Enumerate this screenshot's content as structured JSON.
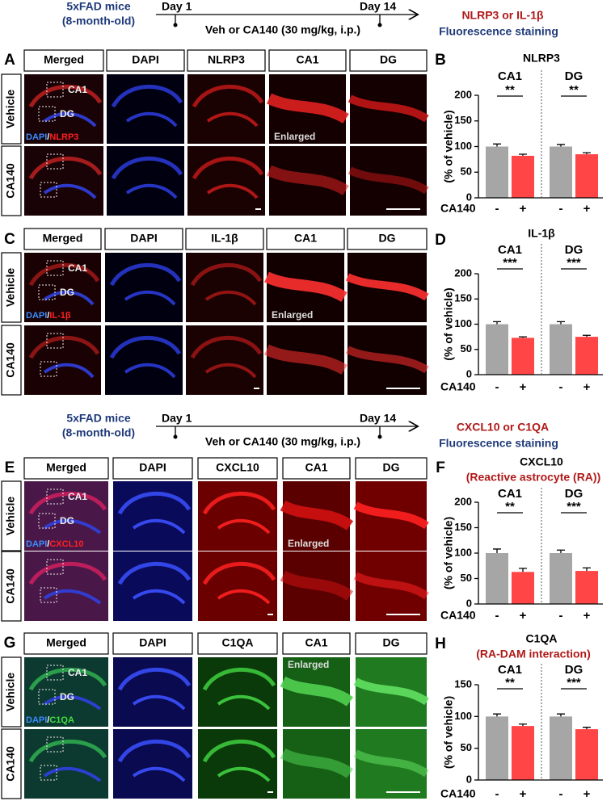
{
  "timelines": [
    {
      "mice": "5xFAD mice",
      "age": "(8-month-old)",
      "start": "Day 1",
      "end": "Day 14",
      "treatment": "Veh or CA140 (30 mg/kg, i.p.)",
      "readout": "NLRP3 or IL-1β",
      "method": "Fluorescence staining"
    },
    {
      "mice": "5xFAD mice",
      "age": "(8-month-old)",
      "start": "Day 1",
      "end": "Day 14",
      "treatment": "Veh or CA140 (30 mg/kg, i.p.)",
      "readout": "CXCL10 or C1QA",
      "method": "Fluorescence staining"
    }
  ],
  "panels": [
    {
      "letter": "A",
      "columns": [
        "Merged",
        "DAPI",
        "NLRP3",
        "CA1",
        "DG"
      ],
      "rows": [
        "Vehicle",
        "CA140"
      ],
      "regions": [
        "CA1",
        "DG"
      ],
      "stain_dapi": "DAPI",
      "separator": "/",
      "stain": "NLRP3",
      "note": "Enlarged"
    },
    {
      "letter": "C",
      "columns": [
        "Merged",
        "DAPI",
        "IL-1β",
        "CA1",
        "DG"
      ],
      "rows": [
        "Vehicle",
        "CA140"
      ],
      "regions": [
        "CA1",
        "DG"
      ],
      "stain_dapi": "DAPI",
      "separator": "/",
      "stain": "IL-1β",
      "note": "Enlarged"
    },
    {
      "letter": "E",
      "columns": [
        "Merged",
        "DAPI",
        "CXCL10",
        "CA1",
        "DG"
      ],
      "rows": [
        "Vehicle",
        "CA140"
      ],
      "regions": [
        "CA1",
        "DG"
      ],
      "stain_dapi": "DAPI",
      "separator": "/",
      "stain": "CXCL10",
      "note": "Enlarged"
    },
    {
      "letter": "G",
      "columns": [
        "Merged",
        "DAPI",
        "C1QA",
        "CA1",
        "DG"
      ],
      "rows": [
        "Vehicle",
        "CA140"
      ],
      "regions": [
        "CA1",
        "DG"
      ],
      "stain_dapi": "DAPI",
      "separator": "/",
      "stain": "C1QA",
      "note": "Enlarged"
    }
  ],
  "chart_data": [
    {
      "type": "bar",
      "letter": "B",
      "title": "NLRP3",
      "groups": [
        "CA1",
        "DG"
      ],
      "significance": [
        "**",
        "**"
      ],
      "ylabel": "(% of vehicle)",
      "x_label": "CA140",
      "categories": [
        "-",
        "+",
        "-",
        "+"
      ],
      "values": [
        100,
        82,
        100,
        85
      ],
      "errors": [
        5,
        3,
        4,
        3
      ],
      "colors": [
        "#a6a6a6",
        "#ff4545",
        "#a6a6a6",
        "#ff4545"
      ],
      "ylim": [
        0,
        200
      ],
      "yticks": [
        0,
        50,
        100,
        150,
        200
      ]
    },
    {
      "type": "bar",
      "letter": "D",
      "title": "IL-1β",
      "groups": [
        "CA1",
        "DG"
      ],
      "significance": [
        "***",
        "***"
      ],
      "ylabel": "(% of vehicle)",
      "x_label": "CA140",
      "categories": [
        "-",
        "+",
        "-",
        "+"
      ],
      "values": [
        100,
        73,
        100,
        75
      ],
      "errors": [
        5,
        2,
        5,
        3
      ],
      "colors": [
        "#a6a6a6",
        "#ff4545",
        "#a6a6a6",
        "#ff4545"
      ],
      "ylim": [
        0,
        200
      ],
      "yticks": [
        0,
        50,
        100,
        150,
        200
      ]
    },
    {
      "type": "bar",
      "letter": "F",
      "title": "CXCL10",
      "subtitle": "(Reactive astrocyte (RA))",
      "groups": [
        "CA1",
        "DG"
      ],
      "significance": [
        "**",
        "***"
      ],
      "ylabel": "(% of vehicle)",
      "x_label": "CA140",
      "categories": [
        "-",
        "+",
        "-",
        "+"
      ],
      "values": [
        100,
        63,
        100,
        65
      ],
      "errors": [
        8,
        7,
        6,
        6
      ],
      "colors": [
        "#a6a6a6",
        "#ff4545",
        "#a6a6a6",
        "#ff4545"
      ],
      "ylim": [
        0,
        200
      ],
      "yticks": [
        0,
        50,
        100,
        150,
        200
      ]
    },
    {
      "type": "bar",
      "letter": "H",
      "title": "C1QA",
      "subtitle": "(RA-DAM interaction)",
      "groups": [
        "CA1",
        "DG"
      ],
      "significance": [
        "**",
        "***"
      ],
      "ylabel": "(% of vehicle)",
      "x_label": "CA140",
      "categories": [
        "-",
        "+",
        "-",
        "+"
      ],
      "values": [
        100,
        85,
        100,
        80
      ],
      "errors": [
        4,
        3,
        4,
        3
      ],
      "colors": [
        "#a6a6a6",
        "#ff4545",
        "#a6a6a6",
        "#ff4545"
      ],
      "ylim": [
        0,
        150
      ],
      "yticks": [
        0,
        50,
        100,
        150
      ]
    }
  ]
}
